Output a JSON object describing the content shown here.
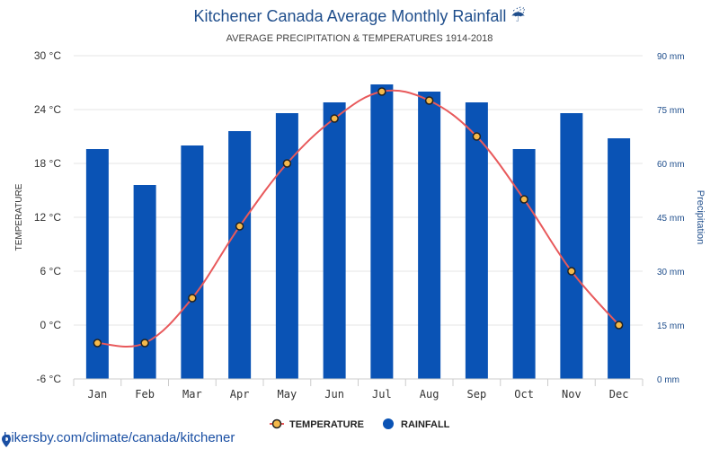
{
  "header": {
    "title": "Kitchener Canada Average Monthly Rainfall ☔",
    "subtitle": "AVERAGE PRECIPITATION & TEMPERATURES 1914-2018"
  },
  "footer": {
    "source": "hikersby.com/climate/canada/kitchener",
    "icon": "location-pin-icon"
  },
  "chart_data": {
    "type": "bar",
    "categories": [
      "Jan",
      "Feb",
      "Mar",
      "Apr",
      "May",
      "Jun",
      "Jul",
      "Aug",
      "Sep",
      "Oct",
      "Nov",
      "Dec"
    ],
    "series": [
      {
        "name": "RAINFALL",
        "kind": "bar",
        "axis": "right",
        "unit": "mm",
        "values": [
          64,
          54,
          65,
          69,
          74,
          77,
          82,
          80,
          77,
          64,
          74,
          67
        ],
        "color": "#0a53b5"
      },
      {
        "name": "TEMPERATURE",
        "kind": "line",
        "axis": "left",
        "unit": "°C",
        "values": [
          -2,
          -2,
          3,
          11,
          18,
          23,
          26,
          25,
          21,
          14,
          6,
          0
        ],
        "color": "#e8595b",
        "marker_fill": "#f5b94a"
      }
    ],
    "y_left": {
      "label": "TEMPERATURE",
      "ylim": [
        -6,
        30
      ],
      "ticks": [
        "-6 °C",
        "0 °C",
        "6 °C",
        "12 °C",
        "18 °C",
        "24 °C",
        "30 °C"
      ]
    },
    "y_right": {
      "label": "Precipitation",
      "ylim": [
        0,
        90
      ],
      "ticks": [
        "0 mm",
        "15 mm",
        "30 mm",
        "45 mm",
        "60 mm",
        "75 mm",
        "90 mm"
      ]
    },
    "grid": true,
    "legend": {
      "position": "bottom-center",
      "items": [
        "TEMPERATURE",
        "RAINFALL"
      ]
    }
  }
}
